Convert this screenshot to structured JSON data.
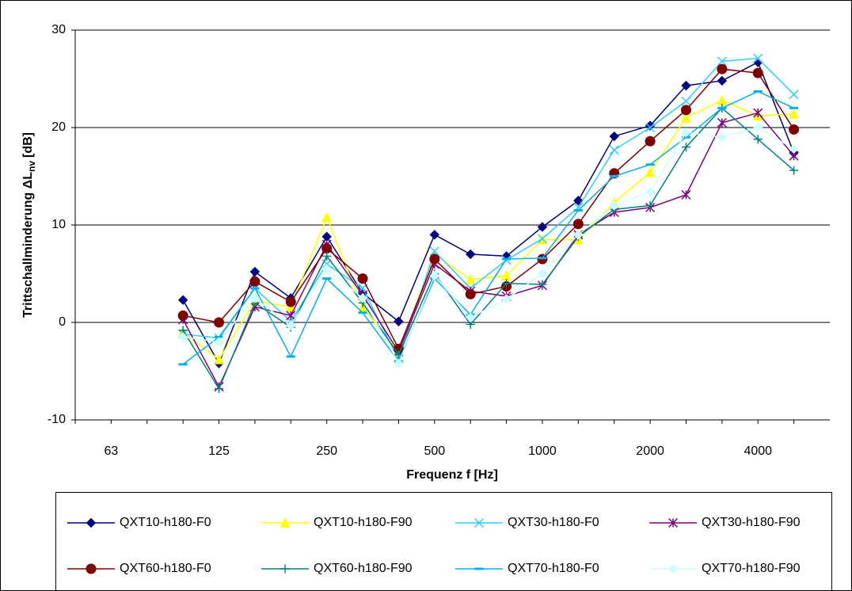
{
  "chart_data": {
    "type": "line",
    "y_label": "Trittschallminderung ΔL",
    "y_label_sub": "nv",
    "y_label_unit": "[dB]",
    "x_label": "Frequenz f [Hz]",
    "categories": [
      null,
      "63",
      null,
      null,
      "125",
      null,
      null,
      "250",
      null,
      null,
      "500",
      null,
      null,
      "1000",
      null,
      null,
      "2000",
      null,
      null,
      "4000",
      null
    ],
    "ylim": [
      -10,
      30
    ],
    "yticks": [
      -10,
      0,
      10,
      20,
      30
    ],
    "grid": true,
    "legend": "bottom",
    "series": [
      {
        "name": "QXT10-h180-F0",
        "color": "#000080",
        "marker": "diamond",
        "values": [
          null,
          null,
          null,
          2.3,
          -4.2,
          5.2,
          2.5,
          8.8,
          3.0,
          0.1,
          9.0,
          7.0,
          6.8,
          9.8,
          12.5,
          19.1,
          20.2,
          24.3,
          24.8,
          26.7,
          17.4
        ]
      },
      {
        "name": "QXT10-h180-F90",
        "color": "#ffff00",
        "marker": "triangle",
        "values": [
          null,
          null,
          null,
          -1.0,
          -3.8,
          2.2,
          1.6,
          10.8,
          1.5,
          -3.0,
          7.0,
          4.4,
          4.8,
          8.5,
          8.5,
          12.3,
          15.4,
          21.0,
          22.8,
          21.2,
          21.4
        ]
      },
      {
        "name": "QXT30-h180-F0",
        "color": "#33ccff",
        "marker": "x",
        "values": [
          null,
          null,
          null,
          -1.2,
          -1.6,
          3.5,
          0.1,
          6.0,
          3.5,
          -3.8,
          7.3,
          3.5,
          6.4,
          8.6,
          11.8,
          17.7,
          20.0,
          22.7,
          26.8,
          27.1,
          23.4
        ]
      },
      {
        "name": "QXT30-h180-F90",
        "color": "#800080",
        "marker": "star",
        "values": [
          null,
          null,
          null,
          0.3,
          -6.6,
          1.6,
          0.7,
          8.0,
          2.8,
          -3.0,
          6.0,
          3.2,
          2.7,
          3.8,
          9.0,
          11.3,
          11.8,
          13.1,
          20.5,
          21.5,
          17.1
        ]
      },
      {
        "name": "QXT60-h180-F0",
        "color": "#800000",
        "marker": "circle",
        "values": [
          null,
          null,
          null,
          0.7,
          0.0,
          4.2,
          2.1,
          7.6,
          4.5,
          -2.7,
          6.5,
          2.9,
          3.7,
          6.5,
          10.1,
          15.3,
          18.6,
          21.8,
          26.0,
          25.6,
          19.8
        ]
      },
      {
        "name": "QXT60-h180-F90",
        "color": "#008080",
        "marker": "plus",
        "values": [
          null,
          null,
          null,
          -0.8,
          -6.8,
          2.0,
          -0.5,
          6.8,
          2.0,
          -3.3,
          5.0,
          -0.2,
          4.0,
          3.9,
          8.8,
          11.6,
          12.0,
          18.0,
          22.0,
          18.8,
          15.6
        ]
      },
      {
        "name": "QXT70-h180-F0",
        "color": "#00b0f0",
        "marker": "dash",
        "values": [
          null,
          null,
          null,
          -4.3,
          -1.5,
          3.5,
          -3.5,
          4.5,
          1.0,
          -4.0,
          4.5,
          0.8,
          6.5,
          6.6,
          11.5,
          15.0,
          16.2,
          19.0,
          22.0,
          23.7,
          22.0
        ]
      },
      {
        "name": "QXT70-h180-F90",
        "color": "#ccffff",
        "marker": "diamond",
        "values": [
          null,
          null,
          null,
          -1.5,
          -2.0,
          2.5,
          -0.3,
          5.5,
          2.5,
          -4.2,
          4.8,
          0.5,
          2.4,
          5.0,
          9.0,
          12.0,
          13.4,
          19.5,
          19.0,
          20.0,
          17.8
        ]
      }
    ]
  }
}
